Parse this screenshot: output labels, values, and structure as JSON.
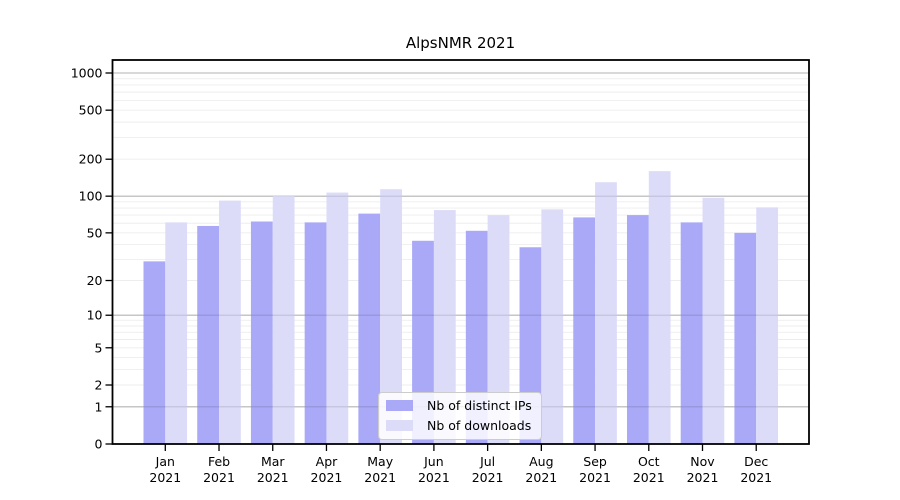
{
  "chart_data": {
    "type": "bar",
    "title": "AlpsNMR 2021",
    "categories": [
      "Jan",
      "Feb",
      "Mar",
      "Apr",
      "May",
      "Jun",
      "Jul",
      "Aug",
      "Sep",
      "Oct",
      "Nov",
      "Dec"
    ],
    "category_year": "2021",
    "series": [
      {
        "name": "Nb of distinct IPs",
        "color": "#a9a9f7",
        "values": [
          29,
          57,
          62,
          61,
          72,
          43,
          52,
          38,
          67,
          70,
          61,
          50
        ]
      },
      {
        "name": "Nb of downloads",
        "color": "#dcdcf9",
        "values": [
          61,
          92,
          100,
          107,
          114,
          77,
          70,
          78,
          130,
          160,
          97,
          81
        ]
      }
    ],
    "xlabel": "",
    "ylabel": "",
    "yscale": "log1p",
    "ylim": [
      0,
      1280
    ],
    "yticks": [
      0,
      1,
      2,
      5,
      10,
      20,
      50,
      100,
      200,
      500,
      1000
    ],
    "grid": {
      "on": true,
      "major_at": [
        1,
        10,
        100,
        1000
      ],
      "major_color": "#b3b3b3",
      "minor_color": "#ebebeb"
    },
    "legend": {
      "position": "lower center"
    },
    "axis_color": "#000000",
    "background_color": "#ffffff"
  }
}
